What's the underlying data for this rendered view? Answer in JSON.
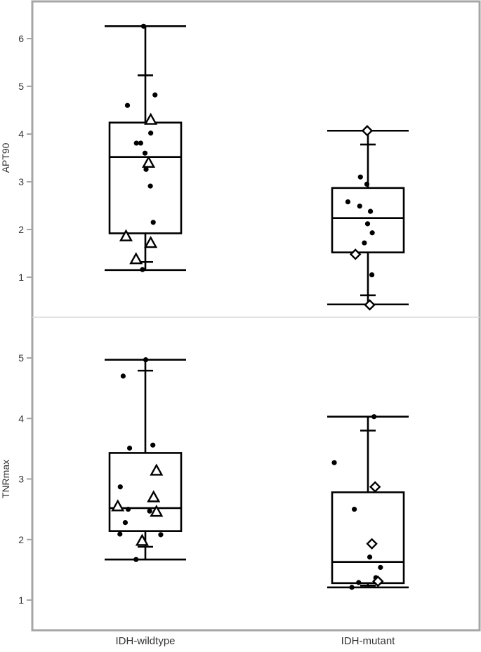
{
  "chart_data": [
    {
      "type": "box",
      "ylabel": "APT90",
      "categories": [
        "IDH-wildtype",
        "IDH-mutant"
      ],
      "yticks": [
        1,
        2,
        3,
        4,
        5,
        6
      ],
      "ylim": [
        0.2,
        6.6
      ],
      "grid": false,
      "groups": [
        {
          "name": "IDH-wildtype",
          "whisker_low": 1.15,
          "q1": 1.92,
          "median": 3.52,
          "q3": 4.24,
          "whisker_high": 6.26,
          "percentile_low": 1.32,
          "percentile_high": 5.23,
          "points": [
            {
              "dx": -0.05,
              "y": 6.26,
              "marker": "dot"
            },
            {
              "dx": 0.27,
              "y": 4.82,
              "marker": "dot"
            },
            {
              "dx": -0.5,
              "y": 4.6,
              "marker": "dot"
            },
            {
              "dx": 0.15,
              "y": 4.3,
              "marker": "triangle"
            },
            {
              "dx": 0.15,
              "y": 4.02,
              "marker": "dot"
            },
            {
              "dx": -0.25,
              "y": 3.81,
              "marker": "dot"
            },
            {
              "dx": -0.13,
              "y": 3.81,
              "marker": "dot"
            },
            {
              "dx": -0.01,
              "y": 3.6,
              "marker": "dot"
            },
            {
              "dx": 0.09,
              "y": 3.4,
              "marker": "triangle"
            },
            {
              "dx": 0.02,
              "y": 3.26,
              "marker": "dot"
            },
            {
              "dx": 0.14,
              "y": 2.91,
              "marker": "dot"
            },
            {
              "dx": 0.22,
              "y": 2.15,
              "marker": "dot"
            },
            {
              "dx": -0.54,
              "y": 1.86,
              "marker": "triangle"
            },
            {
              "dx": 0.15,
              "y": 1.72,
              "marker": "triangle"
            },
            {
              "dx": -0.26,
              "y": 1.38,
              "marker": "triangle"
            },
            {
              "dx": -0.08,
              "y": 1.16,
              "marker": "dot"
            }
          ]
        },
        {
          "name": "IDH-mutant",
          "whisker_low": 0.43,
          "q1": 1.52,
          "median": 2.24,
          "q3": 2.87,
          "whisker_high": 4.07,
          "percentile_low": 0.62,
          "percentile_high": 3.78,
          "points": [
            {
              "dx": -0.02,
              "y": 4.07,
              "marker": "diamond"
            },
            {
              "dx": -0.21,
              "y": 3.1,
              "marker": "dot"
            },
            {
              "dx": -0.03,
              "y": 2.95,
              "marker": "dot"
            },
            {
              "dx": -0.56,
              "y": 2.58,
              "marker": "dot"
            },
            {
              "dx": -0.23,
              "y": 2.49,
              "marker": "dot"
            },
            {
              "dx": 0.07,
              "y": 2.38,
              "marker": "dot"
            },
            {
              "dx": -0.01,
              "y": 2.12,
              "marker": "dot"
            },
            {
              "dx": 0.12,
              "y": 1.93,
              "marker": "dot"
            },
            {
              "dx": -0.1,
              "y": 1.72,
              "marker": "dot"
            },
            {
              "dx": -0.35,
              "y": 1.48,
              "marker": "diamond"
            },
            {
              "dx": 0.11,
              "y": 1.05,
              "marker": "dot"
            },
            {
              "dx": 0.05,
              "y": 0.42,
              "marker": "diamond"
            }
          ]
        }
      ]
    },
    {
      "type": "box",
      "ylabel": "TNRmax",
      "categories": [
        "IDH-wildtype",
        "IDH-mutant"
      ],
      "yticks": [
        1,
        2,
        3,
        4,
        5
      ],
      "ylim": [
        0.5,
        5.5
      ],
      "grid": false,
      "groups": [
        {
          "name": "IDH-wildtype",
          "whisker_low": 1.67,
          "q1": 2.14,
          "median": 2.52,
          "q3": 3.43,
          "whisker_high": 4.97,
          "percentile_low": 1.88,
          "percentile_high": 4.79,
          "points": [
            {
              "dx": 0.01,
              "y": 4.97,
              "marker": "dot"
            },
            {
              "dx": -0.62,
              "y": 4.7,
              "marker": "dot"
            },
            {
              "dx": 0.21,
              "y": 3.56,
              "marker": "dot"
            },
            {
              "dx": -0.44,
              "y": 3.51,
              "marker": "dot"
            },
            {
              "dx": 0.31,
              "y": 3.14,
              "marker": "triangle"
            },
            {
              "dx": -0.7,
              "y": 2.87,
              "marker": "dot"
            },
            {
              "dx": 0.23,
              "y": 2.7,
              "marker": "triangle"
            },
            {
              "dx": -0.77,
              "y": 2.55,
              "marker": "triangle"
            },
            {
              "dx": -0.48,
              "y": 2.5,
              "marker": "dot"
            },
            {
              "dx": 0.12,
              "y": 2.47,
              "marker": "dot"
            },
            {
              "dx": 0.31,
              "y": 2.46,
              "marker": "triangle"
            },
            {
              "dx": -0.56,
              "y": 2.28,
              "marker": "dot"
            },
            {
              "dx": -0.71,
              "y": 2.09,
              "marker": "dot"
            },
            {
              "dx": 0.43,
              "y": 2.08,
              "marker": "dot"
            },
            {
              "dx": -0.09,
              "y": 1.98,
              "marker": "triangle"
            },
            {
              "dx": -0.26,
              "y": 1.67,
              "marker": "dot"
            }
          ]
        },
        {
          "name": "IDH-mutant",
          "whisker_low": 1.21,
          "q1": 1.28,
          "median": 1.63,
          "q3": 2.78,
          "whisker_high": 4.03,
          "percentile_low": 1.24,
          "percentile_high": 3.8,
          "points": [
            {
              "dx": 0.17,
              "y": 4.03,
              "marker": "dot"
            },
            {
              "dx": -0.94,
              "y": 3.27,
              "marker": "dot"
            },
            {
              "dx": 0.2,
              "y": 2.87,
              "marker": "diamond"
            },
            {
              "dx": -0.38,
              "y": 2.5,
              "marker": "dot"
            },
            {
              "dx": 0.11,
              "y": 1.93,
              "marker": "diamond"
            },
            {
              "dx": 0.05,
              "y": 1.71,
              "marker": "dot"
            },
            {
              "dx": 0.35,
              "y": 1.54,
              "marker": "dot"
            },
            {
              "dx": 0.22,
              "y": 1.37,
              "marker": "dot"
            },
            {
              "dx": 0.28,
              "y": 1.31,
              "marker": "diamond"
            },
            {
              "dx": -0.26,
              "y": 1.29,
              "marker": "dot"
            },
            {
              "dx": -0.45,
              "y": 1.21,
              "marker": "dot"
            }
          ]
        }
      ]
    }
  ],
  "style": {
    "frame_color": "#a6a6a6",
    "divider_color": "#d9d9d9",
    "ink_color": "#000000",
    "axis_text_color": "#333333"
  }
}
